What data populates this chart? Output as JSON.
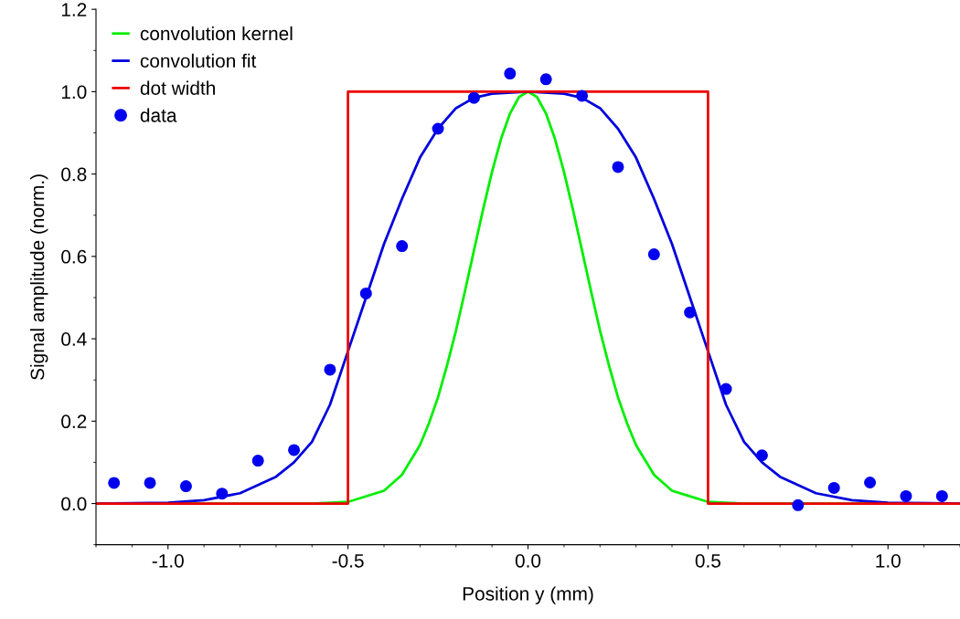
{
  "chart_data": {
    "type": "line",
    "xlabel": "Position y (mm)",
    "ylabel": "Signal amplitude (norm.)",
    "xlim": [
      -1.2,
      1.2
    ],
    "ylim": [
      -0.1,
      1.2
    ],
    "xticks": [
      {
        "value": -1.0,
        "label": "-1.0"
      },
      {
        "value": -0.5,
        "label": "-0.5"
      },
      {
        "value": 0.0,
        "label": "0.0"
      },
      {
        "value": 0.5,
        "label": "0.5"
      },
      {
        "value": 1.0,
        "label": "1.0"
      }
    ],
    "yticks": [
      {
        "value": 0.0,
        "label": "0.0"
      },
      {
        "value": 0.2,
        "label": "0.2"
      },
      {
        "value": 0.4,
        "label": "0.4"
      },
      {
        "value": 0.6,
        "label": "0.6"
      },
      {
        "value": 0.8,
        "label": "0.8"
      },
      {
        "value": 1.0,
        "label": "1.0"
      },
      {
        "value": 1.2,
        "label": "1.2"
      }
    ],
    "grid": false,
    "legend": "top left",
    "series": [
      {
        "name": "convolution kernel",
        "color": "#00ee00",
        "x": [
          -1.2,
          -0.6,
          -0.5,
          -0.4,
          -0.35,
          -0.3,
          -0.275,
          -0.25,
          -0.225,
          -0.2,
          -0.175,
          -0.15,
          -0.125,
          -0.1,
          -0.075,
          -0.05,
          -0.025,
          0,
          0.025,
          0.05,
          0.075,
          0.1,
          0.125,
          0.15,
          0.175,
          0.2,
          0.225,
          0.25,
          0.275,
          0.3,
          0.35,
          0.4,
          0.5,
          0.6,
          1.2
        ],
        "values": [
          0,
          0,
          0.004,
          0.031,
          0.07,
          0.142,
          0.195,
          0.258,
          0.335,
          0.42,
          0.516,
          0.615,
          0.713,
          0.805,
          0.885,
          0.947,
          0.987,
          1.0,
          0.987,
          0.947,
          0.885,
          0.805,
          0.713,
          0.615,
          0.516,
          0.42,
          0.335,
          0.258,
          0.195,
          0.142,
          0.07,
          0.031,
          0.004,
          0,
          0
        ]
      },
      {
        "name": "convolution fit",
        "color": "#0000dd",
        "x": [
          -1.2,
          -1.0,
          -0.9,
          -0.8,
          -0.7,
          -0.65,
          -0.6,
          -0.55,
          -0.5,
          -0.45,
          -0.4,
          -0.35,
          -0.3,
          -0.25,
          -0.2,
          -0.15,
          -0.1,
          0,
          0.1,
          0.15,
          0.2,
          0.25,
          0.3,
          0.35,
          0.4,
          0.45,
          0.5,
          0.55,
          0.6,
          0.65,
          0.7,
          0.8,
          0.9,
          1.0,
          1.2
        ],
        "values": [
          0,
          0.002,
          0.008,
          0.025,
          0.065,
          0.1,
          0.15,
          0.24,
          0.37,
          0.5,
          0.63,
          0.74,
          0.84,
          0.91,
          0.96,
          0.985,
          0.995,
          1.0,
          0.995,
          0.985,
          0.96,
          0.91,
          0.84,
          0.74,
          0.63,
          0.5,
          0.37,
          0.24,
          0.15,
          0.1,
          0.065,
          0.025,
          0.008,
          0.002,
          0
        ]
      },
      {
        "name": "dot width",
        "color": "#ee0000",
        "x": [
          -1.2,
          -0.5,
          -0.5,
          0.5,
          0.5,
          1.2
        ],
        "values": [
          0,
          0,
          1.0,
          1.0,
          0,
          0
        ]
      },
      {
        "name": "data",
        "color": "#0000ee",
        "type": "scatter",
        "marker": "circle",
        "x": [
          -1.15,
          -1.05,
          -0.95,
          -0.85,
          -0.75,
          -0.65,
          -0.55,
          -0.45,
          -0.35,
          -0.25,
          -0.15,
          -0.05,
          0.05,
          0.15,
          0.25,
          0.35,
          0.45,
          0.55,
          0.65,
          0.75,
          0.85,
          0.95,
          1.05,
          1.15
        ],
        "values": [
          0.05,
          0.05,
          0.042,
          0.024,
          0.104,
          0.13,
          0.325,
          0.51,
          0.625,
          0.91,
          0.985,
          1.044,
          1.03,
          0.99,
          0.817,
          0.605,
          0.464,
          0.278,
          0.117,
          -0.004,
          0.038,
          0.051,
          0.018,
          0.018
        ]
      }
    ]
  }
}
